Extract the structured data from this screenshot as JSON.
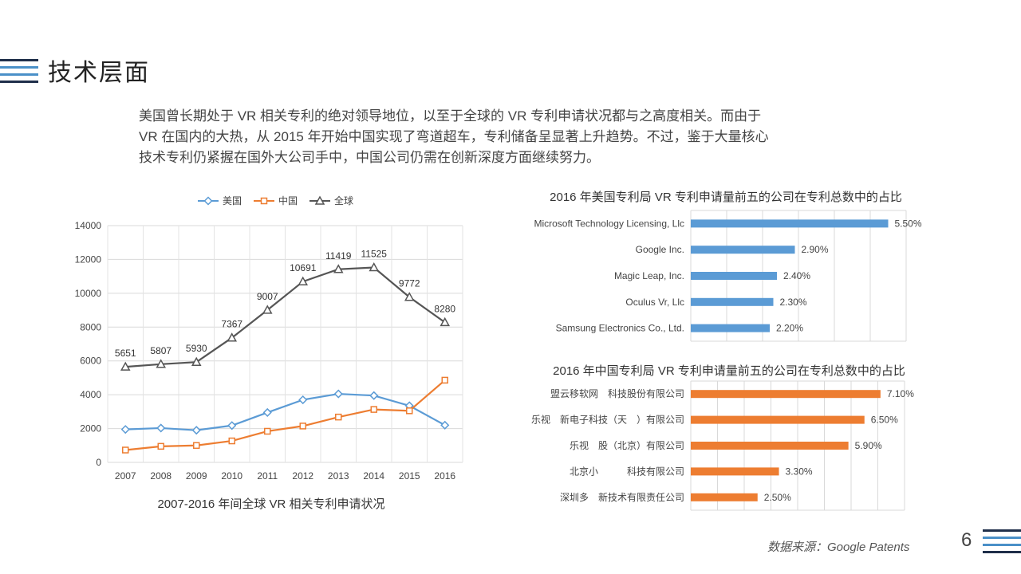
{
  "slide": {
    "title": "技术层面",
    "intro_lines": [
      "美国曾长期处于 VR 相关专利的绝对领导地位，以至于全球的 VR 专利申请状况都与之高度相关。而由于",
      "VR 在国内的大热，从 2015 年开始中国实现了弯道超车，专利储备呈显著上升趋势。不过，鉴于大量核心",
      "技术专利仍紧握在国外大公司手中，中国公司仍需在创新深度方面继续努力。"
    ],
    "source": "数据来源：Google Patents",
    "page_number": "6",
    "accent_colors": {
      "stripe_dark": "#1f2f4a",
      "stripe_light": "#4a90c8"
    }
  },
  "chart_data": [
    {
      "type": "line",
      "title": "",
      "caption": "2007-2016 年间全球 VR 相关专利申请状况",
      "x": [
        "2007",
        "2008",
        "2009",
        "2010",
        "2011",
        "2012",
        "2013",
        "2014",
        "2015",
        "2016"
      ],
      "ylim": [
        0,
        14000
      ],
      "yticks": [
        0,
        2000,
        4000,
        6000,
        8000,
        10000,
        12000,
        14000
      ],
      "grid": true,
      "legend": "top",
      "series": [
        {
          "name": "美国",
          "color": "#5b9bd5",
          "marker": "diamond",
          "values": [
            1950,
            2030,
            1900,
            2180,
            2950,
            3700,
            4050,
            3950,
            3350,
            2200
          ],
          "labels": false
        },
        {
          "name": "中国",
          "color": "#ed7d31",
          "marker": "square",
          "values": [
            730,
            950,
            1000,
            1270,
            1840,
            2150,
            2680,
            3130,
            3050,
            4860
          ],
          "labels": false
        },
        {
          "name": "全球",
          "color": "#555555",
          "marker": "triangle",
          "values": [
            5651,
            5807,
            5930,
            7367,
            9007,
            10691,
            11419,
            11525,
            9772,
            8280
          ],
          "labels": true
        }
      ]
    },
    {
      "type": "bar",
      "orientation": "horizontal",
      "title": "2016 年美国专利局 VR 专利申请量前五的公司在专利总数中的占比",
      "color": "#5b9bd5",
      "categories": [
        "Microsoft Technology Licensing, Llc",
        "Google Inc.",
        "Magic Leap, Inc.",
        "Oculus Vr, Llc",
        "Samsung Electronics Co., Ltd."
      ],
      "values": [
        5.5,
        2.9,
        2.4,
        2.3,
        2.2
      ],
      "value_labels": [
        "5.50%",
        "2.90%",
        "2.40%",
        "2.30%",
        "2.20%"
      ],
      "xlim": [
        0,
        6
      ],
      "grid": true
    },
    {
      "type": "bar",
      "orientation": "horizontal",
      "title": "2016 年中国专利局 VR 专利申请量前五的公司在专利总数中的占比",
      "color": "#ed7d31",
      "categories": [
        "盟云移软网　科技股份有限公司",
        "乐视　新电子科技（天　）有限公司",
        "乐视　股（北京）有限公司",
        "北京小　　　科技有限公司",
        "深圳多　新技术有限责任公司"
      ],
      "values": [
        7.1,
        6.5,
        5.9,
        3.3,
        2.5
      ],
      "value_labels": [
        "7.10%",
        "6.50%",
        "5.90%",
        "3.30%",
        "2.50%"
      ],
      "xlim": [
        0,
        8
      ],
      "grid": true
    }
  ]
}
